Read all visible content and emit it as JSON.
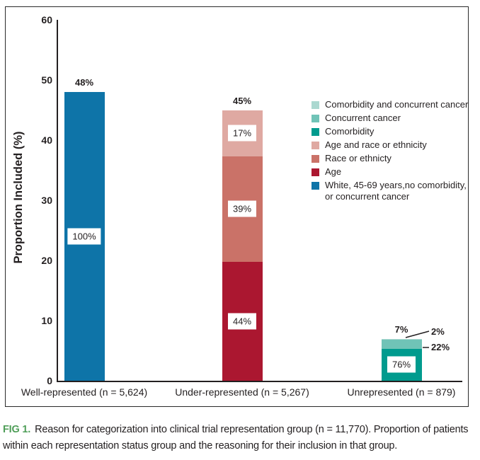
{
  "figure": {
    "caption_tag": "FIG 1.",
    "caption_text": "Reason for categorization into clinical trial representation group (n = 11,770). Proportion of patients within each representation status group and the reasoning for their inclusion in that group."
  },
  "colors": {
    "axis_text": "#231f20",
    "caption_tag_green": "#4f9e58",
    "white_blue": "#0e74a8",
    "age_red": "#ab1730",
    "race_salmon": "#ca7268",
    "age_race_pink": "#dfa9a2",
    "comorbidity_teal": "#009b8e",
    "concurrent_cancer_teal": "#70c3b7",
    "comorbidity_concurrent_light_teal": "#abd8d0"
  },
  "chart_data": {
    "type": "bar",
    "stacked": true,
    "grid": false,
    "ylabel": "Proportion Included (%)",
    "ylim": [
      0,
      60
    ],
    "yticks": [
      0,
      10,
      20,
      30,
      40,
      50,
      60
    ],
    "legend_position": "upper-right-inside",
    "categories": [
      "Well-represented (n = 5,624)",
      "Under-represented (n = 5,267)",
      "Unrepresented (n = 879)"
    ],
    "groups": [
      {
        "category": "Well-represented (n = 5,624)",
        "bar_total_pct": 48,
        "bar_total_label": "48%",
        "segments": [
          {
            "name": "White, 45-69 years,no comorbidity, or concurrent cancer",
            "color": "#0e74a8",
            "within_pct": 100,
            "label": "100%",
            "label_style": "box"
          }
        ]
      },
      {
        "category": "Under-represented (n = 5,267)",
        "bar_total_pct": 45,
        "bar_total_label": "45%",
        "segments": [
          {
            "name": "Age",
            "color": "#ab1730",
            "within_pct": 44,
            "label": "44%",
            "label_style": "box"
          },
          {
            "name": "Race or ethnicty",
            "color": "#ca7268",
            "within_pct": 39,
            "label": "39%",
            "label_style": "box"
          },
          {
            "name": "Age and race or ethnicity",
            "color": "#dfa9a2",
            "within_pct": 17,
            "label": "17%",
            "label_style": "box"
          }
        ]
      },
      {
        "category": "Unrepresented (n = 879)",
        "bar_total_pct": 7,
        "bar_total_label": "7%",
        "segments": [
          {
            "name": "Comorbidity",
            "color": "#009b8e",
            "within_pct": 76,
            "label": "76%",
            "label_style": "box"
          },
          {
            "name": "Concurrent cancer",
            "color": "#70c3b7",
            "within_pct": 22,
            "label": "22%",
            "label_style": "callout"
          },
          {
            "name": "Comorbidity and concurrent cancer",
            "color": "#abd8d0",
            "within_pct": 2,
            "label": "2%",
            "label_style": "callout"
          }
        ]
      }
    ],
    "legend": [
      {
        "label": "Comorbidity and concurrent cancer",
        "color": "#abd8d0"
      },
      {
        "label": "Concurrent cancer",
        "color": "#70c3b7"
      },
      {
        "label": "Comorbidity",
        "color": "#009b8e"
      },
      {
        "label": "Age and race or ethnicity",
        "color": "#dfa9a2"
      },
      {
        "label": "Race or ethnicty",
        "color": "#ca7268"
      },
      {
        "label": "Age",
        "color": "#ab1730"
      },
      {
        "label": "White, 45-69 years,no comorbidity, or concurrent cancer",
        "color": "#0e74a8"
      }
    ]
  }
}
